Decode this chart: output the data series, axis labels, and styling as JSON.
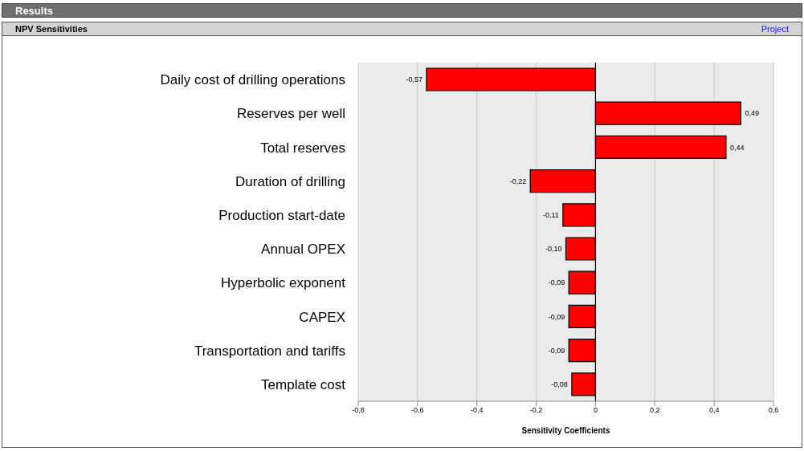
{
  "chart_data": {
    "type": "bar",
    "orientation": "horizontal",
    "title": "NPV Sensitivities",
    "subtitle": "Results",
    "annotations": [
      "Project"
    ],
    "xlabel": "Sensitivity Coefficients",
    "categories": [
      "Daily cost of drilling operations",
      "Reserves per well",
      "Total reserves",
      "Duration of drilling",
      "Production start-date",
      "Annual OPEX",
      "Hyperbolic exponent",
      "CAPEX",
      "Transportation and tariffs",
      "Template cost"
    ],
    "values": [
      -0.57,
      0.49,
      0.44,
      -0.22,
      -0.11,
      -0.1,
      -0.09,
      -0.09,
      -0.09,
      -0.08
    ],
    "value_labels": [
      "-0,57",
      "0,49",
      "0,44",
      "-0,22",
      "-0,11",
      "-0,10",
      "-0,09",
      "-0,09",
      "-0,09",
      "-0,08"
    ],
    "color": "#ff0000",
    "xlim": [
      -0.8,
      0.6
    ],
    "xticks": [
      {
        "value": -0.8,
        "label": "-0,8"
      },
      {
        "value": -0.6,
        "label": "-0,6"
      },
      {
        "value": -0.4,
        "label": "-0,4"
      },
      {
        "value": -0.2,
        "label": "-0,2"
      },
      {
        "value": 0,
        "label": "0"
      },
      {
        "value": 0.2,
        "label": "0,2"
      },
      {
        "value": 0.4,
        "label": "0,4"
      },
      {
        "value": 0.6,
        "label": "0,6"
      }
    ],
    "grid": "x",
    "ref_lines": [
      {
        "axis": "x",
        "value": 0,
        "color": "#000000"
      }
    ]
  }
}
